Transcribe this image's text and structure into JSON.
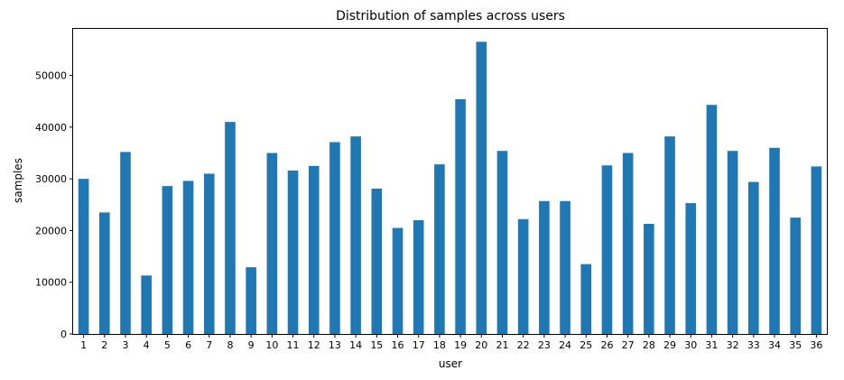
{
  "chart_data": {
    "type": "bar",
    "title": "Distribution of samples across users",
    "xlabel": "user",
    "ylabel": "samples",
    "ylim": [
      0,
      59000
    ],
    "yticks": [
      0,
      10000,
      20000,
      30000,
      40000,
      50000
    ],
    "ytick_labels": [
      "0",
      "10000",
      "20000",
      "30000",
      "40000",
      "50000"
    ],
    "bar_color": "#1f77b4",
    "grid": false,
    "categories": [
      "1",
      "2",
      "3",
      "4",
      "5",
      "6",
      "7",
      "8",
      "9",
      "10",
      "11",
      "12",
      "13",
      "14",
      "15",
      "16",
      "17",
      "18",
      "19",
      "20",
      "21",
      "22",
      "23",
      "24",
      "25",
      "26",
      "27",
      "28",
      "29",
      "30",
      "31",
      "32",
      "33",
      "34",
      "35",
      "36"
    ],
    "values": [
      30000,
      23500,
      35200,
      11300,
      28600,
      29600,
      31000,
      41000,
      12900,
      35000,
      31600,
      32500,
      37100,
      38200,
      28100,
      20500,
      22000,
      32800,
      45400,
      56500,
      35400,
      22200,
      25700,
      25700,
      13500,
      32600,
      35000,
      21300,
      38200,
      25300,
      44300,
      35400,
      29400,
      36000,
      22500,
      32400
    ]
  }
}
